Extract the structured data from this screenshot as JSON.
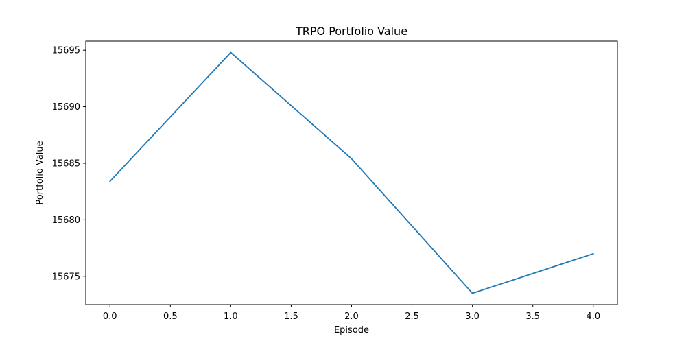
{
  "chart_data": {
    "type": "line",
    "title": "TRPO Portfolio Value",
    "xlabel": "Episode",
    "ylabel": "Portfolio Value",
    "xlim": [
      -0.2,
      4.2
    ],
    "ylim": [
      15672.5,
      15695.8
    ],
    "xticks": [
      0.0,
      0.5,
      1.0,
      1.5,
      2.0,
      2.5,
      3.0,
      3.5,
      4.0
    ],
    "xtick_labels": [
      "0.0",
      "0.5",
      "1.0",
      "1.5",
      "2.0",
      "2.5",
      "3.0",
      "3.5",
      "4.0"
    ],
    "yticks": [
      15675,
      15680,
      15685,
      15690,
      15695
    ],
    "ytick_labels": [
      "15675",
      "15680",
      "15685",
      "15690",
      "15695"
    ],
    "grid": false,
    "series": [
      {
        "x": [
          0,
          1,
          2,
          3,
          4
        ],
        "values": [
          15683.4,
          15694.8,
          15685.4,
          15673.5,
          15677.0
        ],
        "color": "#1f77b4"
      }
    ]
  }
}
